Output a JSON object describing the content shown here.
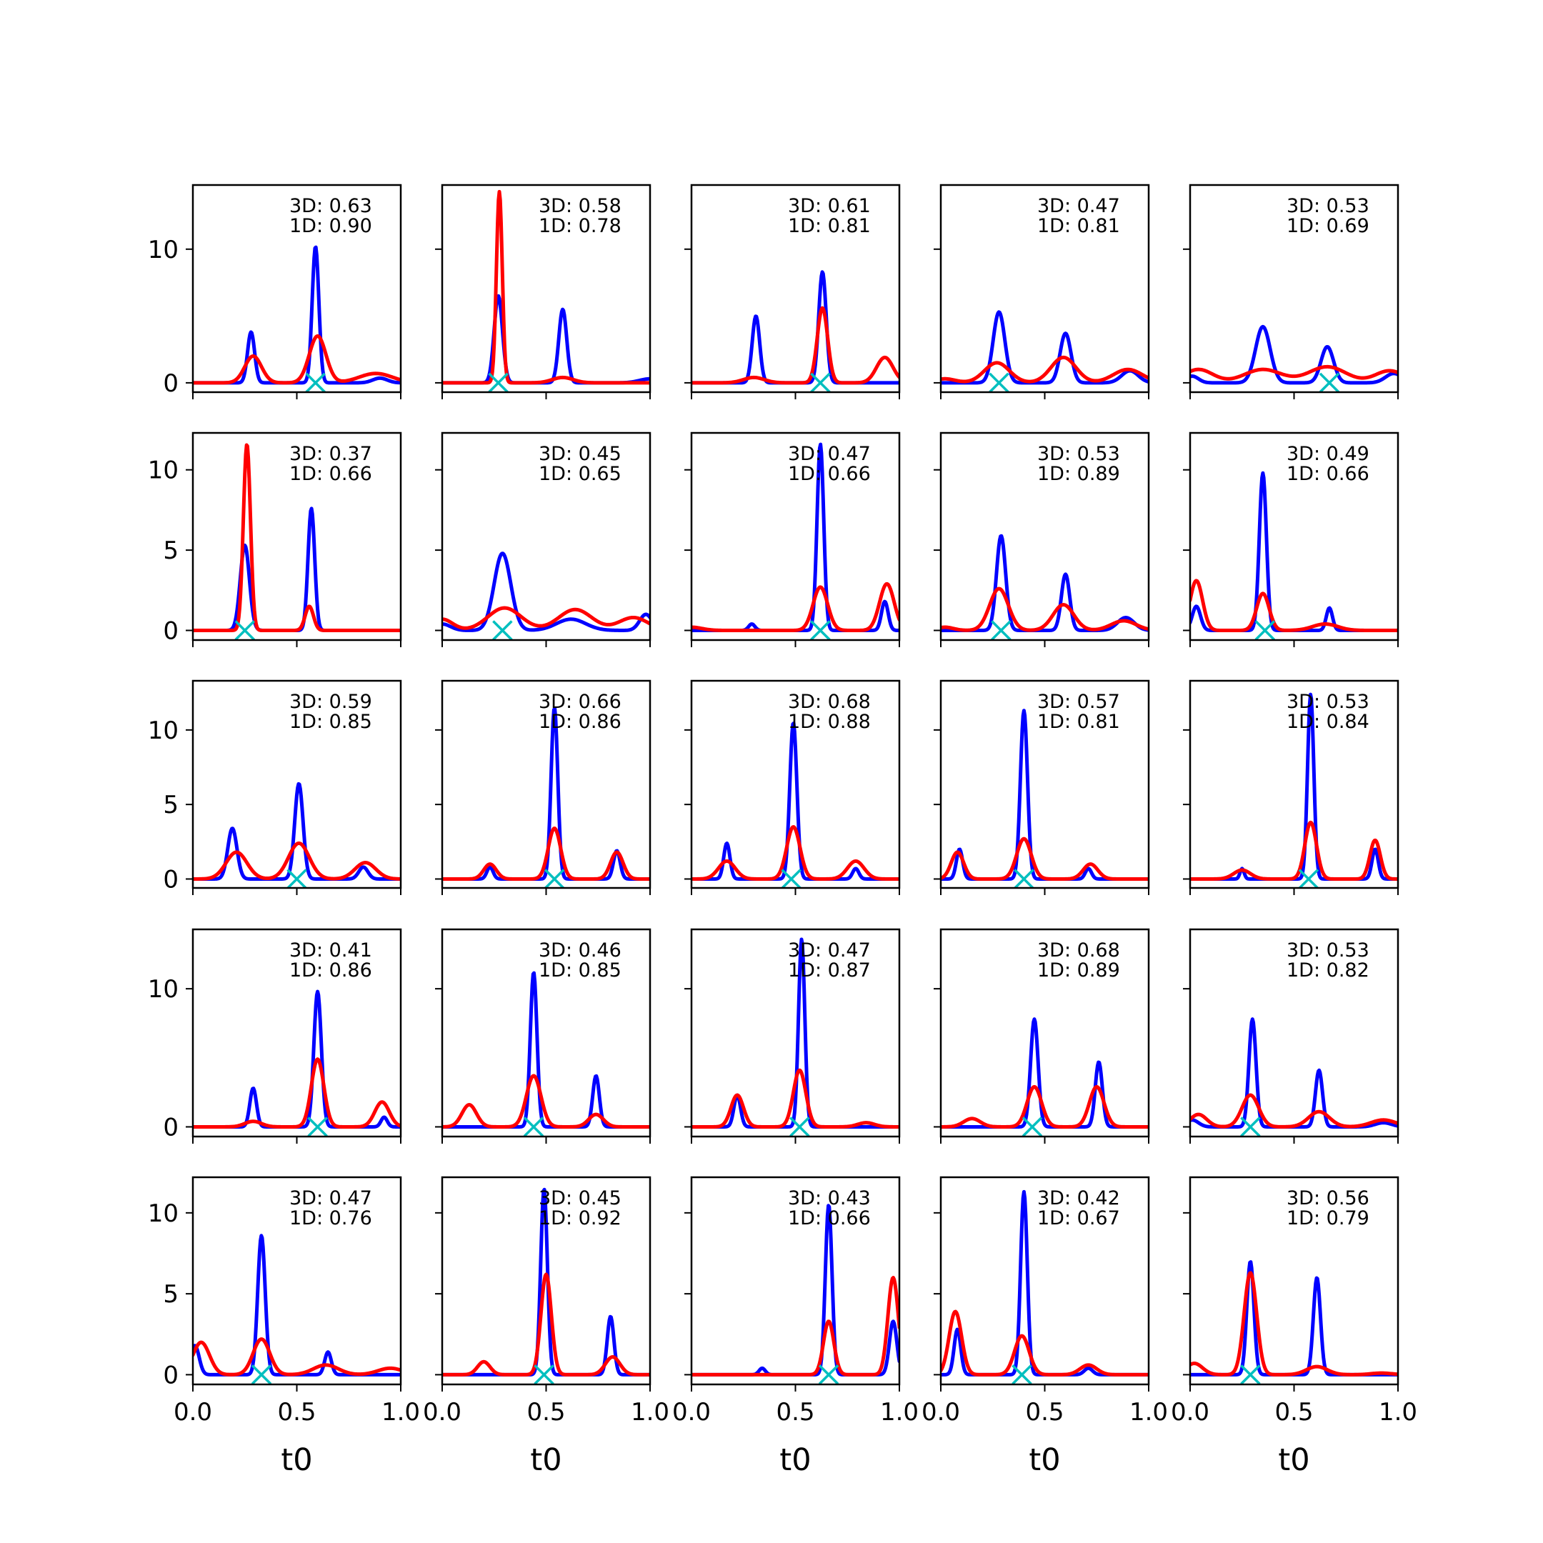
{
  "chart_data": {
    "type": "line",
    "layout": {
      "rows": 5,
      "cols": 5,
      "sharex": true,
      "sharey_per_row": true
    },
    "xlabel": "t0",
    "xlim": [
      0,
      1
    ],
    "xticks": [
      "0.0",
      "0.5",
      "1.0"
    ],
    "colors": {
      "blue": "#0000ff",
      "red": "#ff0000",
      "marker": "#00bfbf"
    },
    "rows": [
      {
        "ylim": [
          -0.7,
          14.8
        ],
        "yticks": [
          0,
          10
        ]
      },
      {
        "ylim": [
          -0.6,
          12.3
        ],
        "yticks": [
          0,
          5,
          10
        ]
      },
      {
        "ylim": [
          -0.6,
          13.3
        ],
        "yticks": [
          0,
          5,
          10
        ]
      },
      {
        "ylim": [
          -0.7,
          14.3
        ],
        "yticks": [
          0,
          10
        ]
      },
      {
        "ylim": [
          -0.6,
          12.2
        ],
        "yticks": [
          0,
          5,
          10
        ]
      }
    ],
    "panels": [
      {
        "annotation": [
          "3D: 0.63",
          "1D: 0.90"
        ],
        "marker": 0.59,
        "blue": [
          {
            "c": 0.28,
            "a": 3.8,
            "w": 0.017
          },
          {
            "c": 0.59,
            "a": 10.2,
            "w": 0.016
          },
          {
            "c": 0.9,
            "a": 0.35,
            "w": 0.035
          }
        ],
        "red": [
          {
            "c": 0.29,
            "a": 2.0,
            "w": 0.04
          },
          {
            "c": 0.6,
            "a": 3.5,
            "w": 0.04
          },
          {
            "c": 0.88,
            "a": 0.7,
            "w": 0.08
          }
        ]
      },
      {
        "annotation": [
          "3D: 0.58",
          "1D: 0.78"
        ],
        "marker": 0.27,
        "blue": [
          {
            "c": 0.27,
            "a": 6.5,
            "w": 0.02
          },
          {
            "c": 0.58,
            "a": 5.5,
            "w": 0.019
          },
          {
            "c": 1.0,
            "a": 0.3,
            "w": 0.05
          }
        ],
        "red": [
          {
            "c": 0.275,
            "a": 14.3,
            "w": 0.014
          },
          {
            "c": 0.58,
            "a": 0.4,
            "w": 0.05
          }
        ]
      },
      {
        "annotation": [
          "3D: 0.61",
          "1D: 0.81"
        ],
        "marker": 0.62,
        "blue": [
          {
            "c": 0.31,
            "a": 5.0,
            "w": 0.018
          },
          {
            "c": 0.63,
            "a": 8.3,
            "w": 0.018
          }
        ],
        "red": [
          {
            "c": 0.3,
            "a": 0.4,
            "w": 0.05
          },
          {
            "c": 0.63,
            "a": 5.6,
            "w": 0.025
          },
          {
            "c": 0.93,
            "a": 1.9,
            "w": 0.04
          }
        ]
      },
      {
        "annotation": [
          "3D: 0.47",
          "1D: 0.81"
        ],
        "marker": 0.28,
        "blue": [
          {
            "c": 0.28,
            "a": 5.3,
            "w": 0.028
          },
          {
            "c": 0.6,
            "a": 3.7,
            "w": 0.026
          },
          {
            "c": 0.91,
            "a": 0.9,
            "w": 0.04
          }
        ],
        "red": [
          {
            "c": 0.27,
            "a": 1.5,
            "w": 0.06
          },
          {
            "c": 0.59,
            "a": 1.9,
            "w": 0.06
          },
          {
            "c": 0.9,
            "a": 1.0,
            "w": 0.07
          },
          {
            "c": 0.02,
            "a": 0.3,
            "w": 0.05
          }
        ]
      },
      {
        "annotation": [
          "3D: 0.53",
          "1D: 0.69"
        ],
        "marker": 0.67,
        "blue": [
          {
            "c": 0.35,
            "a": 4.2,
            "w": 0.035
          },
          {
            "c": 0.66,
            "a": 2.7,
            "w": 0.03
          },
          {
            "c": 0.01,
            "a": 0.5,
            "w": 0.03
          },
          {
            "c": 0.98,
            "a": 0.7,
            "w": 0.04
          }
        ],
        "red": [
          {
            "c": 0.04,
            "a": 1.0,
            "w": 0.07
          },
          {
            "c": 0.35,
            "a": 1.0,
            "w": 0.09
          },
          {
            "c": 0.66,
            "a": 1.2,
            "w": 0.09
          },
          {
            "c": 0.96,
            "a": 0.9,
            "w": 0.07
          }
        ]
      },
      {
        "annotation": [
          "3D: 0.37",
          "1D: 0.66"
        ],
        "marker": 0.25,
        "blue": [
          {
            "c": 0.25,
            "a": 5.3,
            "w": 0.022
          },
          {
            "c": 0.57,
            "a": 7.6,
            "w": 0.016
          }
        ],
        "red": [
          {
            "c": 0.26,
            "a": 11.6,
            "w": 0.017
          },
          {
            "c": 0.56,
            "a": 1.5,
            "w": 0.02
          }
        ]
      },
      {
        "annotation": [
          "3D: 0.45",
          "1D: 0.65"
        ],
        "marker": 0.29,
        "blue": [
          {
            "c": 0.29,
            "a": 4.8,
            "w": 0.04
          },
          {
            "c": 0.62,
            "a": 0.7,
            "w": 0.07
          },
          {
            "c": 0.98,
            "a": 1.0,
            "w": 0.03
          },
          {
            "c": 0.0,
            "a": 0.4,
            "w": 0.04
          }
        ],
        "red": [
          {
            "c": 0.0,
            "a": 0.7,
            "w": 0.05
          },
          {
            "c": 0.3,
            "a": 1.4,
            "w": 0.08
          },
          {
            "c": 0.64,
            "a": 1.3,
            "w": 0.08
          },
          {
            "c": 0.92,
            "a": 0.8,
            "w": 0.07
          }
        ]
      },
      {
        "annotation": [
          "3D: 0.47",
          "1D: 0.66"
        ],
        "marker": 0.62,
        "blue": [
          {
            "c": 0.62,
            "a": 11.6,
            "w": 0.016
          },
          {
            "c": 0.93,
            "a": 1.8,
            "w": 0.016
          },
          {
            "c": 0.29,
            "a": 0.4,
            "w": 0.015
          }
        ],
        "red": [
          {
            "c": 0.62,
            "a": 2.7,
            "w": 0.035
          },
          {
            "c": 0.94,
            "a": 2.9,
            "w": 0.035
          },
          {
            "c": 0.0,
            "a": 0.2,
            "w": 0.05
          }
        ]
      },
      {
        "annotation": [
          "3D: 0.53",
          "1D: 0.89"
        ],
        "marker": 0.29,
        "blue": [
          {
            "c": 0.29,
            "a": 5.9,
            "w": 0.022
          },
          {
            "c": 0.6,
            "a": 3.5,
            "w": 0.02
          },
          {
            "c": 0.89,
            "a": 0.8,
            "w": 0.04
          }
        ],
        "red": [
          {
            "c": 0.28,
            "a": 2.6,
            "w": 0.045
          },
          {
            "c": 0.59,
            "a": 1.6,
            "w": 0.05
          },
          {
            "c": 0.88,
            "a": 0.6,
            "w": 0.06
          },
          {
            "c": 0.02,
            "a": 0.2,
            "w": 0.04
          }
        ]
      },
      {
        "annotation": [
          "3D: 0.49",
          "1D: 0.66"
        ],
        "marker": 0.36,
        "blue": [
          {
            "c": 0.35,
            "a": 9.8,
            "w": 0.017
          },
          {
            "c": 0.67,
            "a": 1.4,
            "w": 0.015
          },
          {
            "c": 0.03,
            "a": 1.5,
            "w": 0.02
          }
        ],
        "red": [
          {
            "c": 0.03,
            "a": 3.1,
            "w": 0.03
          },
          {
            "c": 0.35,
            "a": 2.3,
            "w": 0.03
          },
          {
            "c": 0.65,
            "a": 0.4,
            "w": 0.06
          }
        ]
      },
      {
        "annotation": [
          "3D: 0.59",
          "1D: 0.85"
        ],
        "marker": 0.5,
        "blue": [
          {
            "c": 0.19,
            "a": 3.4,
            "w": 0.022
          },
          {
            "c": 0.51,
            "a": 6.4,
            "w": 0.02
          },
          {
            "c": 0.82,
            "a": 0.8,
            "w": 0.022
          }
        ],
        "red": [
          {
            "c": 0.21,
            "a": 1.8,
            "w": 0.05
          },
          {
            "c": 0.51,
            "a": 2.4,
            "w": 0.05
          },
          {
            "c": 0.83,
            "a": 1.1,
            "w": 0.05
          }
        ]
      },
      {
        "annotation": [
          "3D: 0.66",
          "1D: 0.86"
        ],
        "marker": 0.54,
        "blue": [
          {
            "c": 0.54,
            "a": 11.5,
            "w": 0.016
          },
          {
            "c": 0.84,
            "a": 1.9,
            "w": 0.016
          },
          {
            "c": 0.23,
            "a": 0.8,
            "w": 0.015
          }
        ],
        "red": [
          {
            "c": 0.54,
            "a": 3.4,
            "w": 0.03
          },
          {
            "c": 0.84,
            "a": 1.8,
            "w": 0.03
          },
          {
            "c": 0.23,
            "a": 1.0,
            "w": 0.03
          }
        ]
      },
      {
        "annotation": [
          "3D: 0.68",
          "1D: 0.88"
        ],
        "marker": 0.48,
        "blue": [
          {
            "c": 0.49,
            "a": 10.5,
            "w": 0.017
          },
          {
            "c": 0.17,
            "a": 2.4,
            "w": 0.015
          },
          {
            "c": 0.79,
            "a": 0.7,
            "w": 0.015
          }
        ],
        "red": [
          {
            "c": 0.49,
            "a": 3.5,
            "w": 0.032
          },
          {
            "c": 0.17,
            "a": 1.2,
            "w": 0.04
          },
          {
            "c": 0.79,
            "a": 1.2,
            "w": 0.04
          }
        ]
      },
      {
        "annotation": [
          "3D: 0.57",
          "1D: 0.81"
        ],
        "marker": 0.4,
        "blue": [
          {
            "c": 0.4,
            "a": 11.3,
            "w": 0.017
          },
          {
            "c": 0.09,
            "a": 2.0,
            "w": 0.015
          },
          {
            "c": 0.71,
            "a": 0.7,
            "w": 0.015
          }
        ],
        "red": [
          {
            "c": 0.4,
            "a": 2.7,
            "w": 0.035
          },
          {
            "c": 0.08,
            "a": 1.8,
            "w": 0.03
          },
          {
            "c": 0.72,
            "a": 1.0,
            "w": 0.035
          }
        ]
      },
      {
        "annotation": [
          "3D: 0.53",
          "1D: 0.84"
        ],
        "marker": 0.57,
        "blue": [
          {
            "c": 0.58,
            "a": 12.4,
            "w": 0.015
          },
          {
            "c": 0.89,
            "a": 2.0,
            "w": 0.015
          },
          {
            "c": 0.25,
            "a": 0.7,
            "w": 0.01
          }
        ],
        "red": [
          {
            "c": 0.58,
            "a": 3.8,
            "w": 0.028
          },
          {
            "c": 0.89,
            "a": 2.6,
            "w": 0.025
          },
          {
            "c": 0.25,
            "a": 0.6,
            "w": 0.04
          }
        ]
      },
      {
        "annotation": [
          "3D: 0.41",
          "1D: 0.86"
        ],
        "marker": 0.6,
        "blue": [
          {
            "c": 0.29,
            "a": 2.8,
            "w": 0.016
          },
          {
            "c": 0.6,
            "a": 9.8,
            "w": 0.018
          },
          {
            "c": 0.92,
            "a": 0.7,
            "w": 0.015
          }
        ],
        "red": [
          {
            "c": 0.29,
            "a": 0.4,
            "w": 0.04
          },
          {
            "c": 0.6,
            "a": 4.9,
            "w": 0.03
          },
          {
            "c": 0.91,
            "a": 1.8,
            "w": 0.035
          }
        ]
      },
      {
        "annotation": [
          "3D: 0.46",
          "1D: 0.85"
        ],
        "marker": 0.44,
        "blue": [
          {
            "c": 0.44,
            "a": 11.2,
            "w": 0.016
          },
          {
            "c": 0.74,
            "a": 3.7,
            "w": 0.016
          }
        ],
        "red": [
          {
            "c": 0.44,
            "a": 3.7,
            "w": 0.035
          },
          {
            "c": 0.13,
            "a": 1.6,
            "w": 0.035
          },
          {
            "c": 0.74,
            "a": 0.9,
            "w": 0.035
          }
        ]
      },
      {
        "annotation": [
          "3D: 0.47",
          "1D: 0.87"
        ],
        "marker": 0.52,
        "blue": [
          {
            "c": 0.53,
            "a": 13.6,
            "w": 0.015
          },
          {
            "c": 0.22,
            "a": 2.3,
            "w": 0.016
          }
        ],
        "red": [
          {
            "c": 0.52,
            "a": 4.1,
            "w": 0.03
          },
          {
            "c": 0.22,
            "a": 2.3,
            "w": 0.03
          },
          {
            "c": 0.84,
            "a": 0.3,
            "w": 0.04
          }
        ]
      },
      {
        "annotation": [
          "3D: 0.68",
          "1D: 0.89"
        ],
        "marker": 0.44,
        "blue": [
          {
            "c": 0.45,
            "a": 7.8,
            "w": 0.018
          },
          {
            "c": 0.76,
            "a": 4.7,
            "w": 0.017
          }
        ],
        "red": [
          {
            "c": 0.45,
            "a": 2.9,
            "w": 0.035
          },
          {
            "c": 0.75,
            "a": 2.9,
            "w": 0.035
          },
          {
            "c": 0.15,
            "a": 0.6,
            "w": 0.04
          }
        ]
      },
      {
        "annotation": [
          "3D: 0.53",
          "1D: 0.82"
        ],
        "marker": 0.29,
        "blue": [
          {
            "c": 0.3,
            "a": 7.8,
            "w": 0.017
          },
          {
            "c": 0.62,
            "a": 4.1,
            "w": 0.017
          },
          {
            "c": 0.01,
            "a": 0.5,
            "w": 0.03
          },
          {
            "c": 0.93,
            "a": 0.3,
            "w": 0.04
          }
        ],
        "red": [
          {
            "c": 0.29,
            "a": 2.3,
            "w": 0.04
          },
          {
            "c": 0.62,
            "a": 1.1,
            "w": 0.05
          },
          {
            "c": 0.04,
            "a": 0.9,
            "w": 0.04
          },
          {
            "c": 0.93,
            "a": 0.5,
            "w": 0.06
          }
        ]
      },
      {
        "annotation": [
          "3D: 0.47",
          "1D: 0.76"
        ],
        "marker": 0.33,
        "blue": [
          {
            "c": 0.33,
            "a": 8.6,
            "w": 0.018
          },
          {
            "c": 0.65,
            "a": 1.4,
            "w": 0.016
          },
          {
            "c": 0.01,
            "a": 1.8,
            "w": 0.02
          }
        ],
        "red": [
          {
            "c": 0.33,
            "a": 2.2,
            "w": 0.04
          },
          {
            "c": 0.64,
            "a": 0.6,
            "w": 0.06
          },
          {
            "c": 0.04,
            "a": 2.0,
            "w": 0.04
          },
          {
            "c": 0.95,
            "a": 0.4,
            "w": 0.06
          }
        ]
      },
      {
        "annotation": [
          "3D: 0.45",
          "1D: 0.92"
        ],
        "marker": 0.49,
        "blue": [
          {
            "c": 0.49,
            "a": 11.5,
            "w": 0.016
          },
          {
            "c": 0.81,
            "a": 3.6,
            "w": 0.016
          }
        ],
        "red": [
          {
            "c": 0.5,
            "a": 6.2,
            "w": 0.025
          },
          {
            "c": 0.82,
            "a": 1.1,
            "w": 0.035
          },
          {
            "c": 0.2,
            "a": 0.8,
            "w": 0.03
          }
        ]
      },
      {
        "annotation": [
          "3D: 0.43",
          "1D: 0.66"
        ],
        "marker": 0.66,
        "blue": [
          {
            "c": 0.66,
            "a": 10.5,
            "w": 0.016
          },
          {
            "c": 0.97,
            "a": 3.3,
            "w": 0.018
          },
          {
            "c": 0.34,
            "a": 0.4,
            "w": 0.015
          }
        ],
        "red": [
          {
            "c": 0.66,
            "a": 3.3,
            "w": 0.025
          },
          {
            "c": 0.97,
            "a": 6.0,
            "w": 0.025
          }
        ]
      },
      {
        "annotation": [
          "3D: 0.42",
          "1D: 0.67"
        ],
        "marker": 0.39,
        "blue": [
          {
            "c": 0.4,
            "a": 11.3,
            "w": 0.016
          },
          {
            "c": 0.08,
            "a": 2.8,
            "w": 0.016
          },
          {
            "c": 0.71,
            "a": 0.4,
            "w": 0.02
          }
        ],
        "red": [
          {
            "c": 0.39,
            "a": 2.4,
            "w": 0.035
          },
          {
            "c": 0.07,
            "a": 3.9,
            "w": 0.03
          },
          {
            "c": 0.71,
            "a": 0.6,
            "w": 0.04
          }
        ]
      },
      {
        "annotation": [
          "3D: 0.56",
          "1D: 0.79"
        ],
        "marker": 0.29,
        "blue": [
          {
            "c": 0.29,
            "a": 7.0,
            "w": 0.017
          },
          {
            "c": 0.61,
            "a": 6.0,
            "w": 0.017
          }
        ],
        "red": [
          {
            "c": 0.29,
            "a": 6.3,
            "w": 0.03
          },
          {
            "c": 0.61,
            "a": 0.5,
            "w": 0.05
          },
          {
            "c": 0.02,
            "a": 0.7,
            "w": 0.04
          },
          {
            "c": 0.92,
            "a": 0.1,
            "w": 0.05
          }
        ]
      }
    ]
  }
}
